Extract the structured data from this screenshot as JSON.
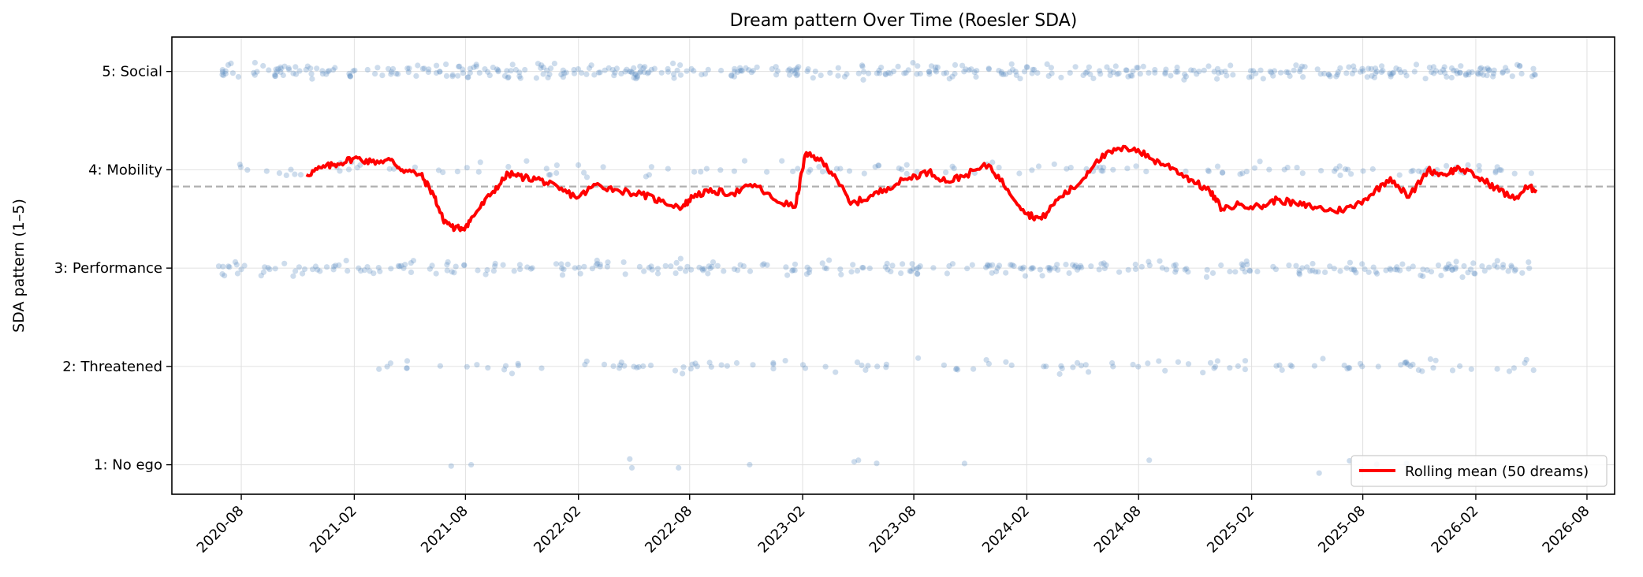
{
  "chart_data": {
    "type": "scatter",
    "title": "Dream pattern Over Time (Roesler SDA)",
    "xlabel": "",
    "ylabel": "SDA pattern (1–5)",
    "x_type": "date",
    "xlim": [
      "2020-04-10",
      "2026-09-15"
    ],
    "ylim": [
      0.7,
      5.35
    ],
    "x_ticks": [
      "2020-08",
      "2021-02",
      "2021-08",
      "2022-02",
      "2022-08",
      "2023-02",
      "2023-08",
      "2024-02",
      "2024-08",
      "2025-02",
      "2025-08",
      "2026-02",
      "2026-08"
    ],
    "y_ticks": [
      {
        "value": 1,
        "label": "1: No ego"
      },
      {
        "value": 2,
        "label": "2: Threatened"
      },
      {
        "value": 3,
        "label": "3: Performance"
      },
      {
        "value": 4,
        "label": "4: Mobility"
      },
      {
        "value": 5,
        "label": "5: Social"
      }
    ],
    "grid": true,
    "mean_line": {
      "y": 3.83,
      "style": "dashed",
      "color": "#b0b0b0"
    },
    "scatter_color": "#5b8abf",
    "scatter_alpha": 0.3,
    "scatter_date_range": [
      "2020-06-25",
      "2026-05-10"
    ],
    "scatter_counts": {
      "1": 16,
      "2": 130,
      "3": 330,
      "4": 140,
      "5": 460
    },
    "scatter_jitter": 0.06,
    "series": [
      {
        "name": "Rolling mean (50 dreams)",
        "color": "#ff0000",
        "points": [
          [
            "2020-11-15",
            3.95
          ],
          [
            "2020-12-10",
            4.02
          ],
          [
            "2021-01-05",
            4.06
          ],
          [
            "2021-02-01",
            4.12
          ],
          [
            "2021-03-01",
            4.08
          ],
          [
            "2021-04-01",
            4.1
          ],
          [
            "2021-04-20",
            4.0
          ],
          [
            "2021-05-20",
            3.95
          ],
          [
            "2021-06-10",
            3.75
          ],
          [
            "2021-06-25",
            3.5
          ],
          [
            "2021-07-15",
            3.4
          ],
          [
            "2021-08-01",
            3.42
          ],
          [
            "2021-08-20",
            3.58
          ],
          [
            "2021-09-15",
            3.78
          ],
          [
            "2021-10-10",
            3.96
          ],
          [
            "2021-11-05",
            3.92
          ],
          [
            "2021-12-01",
            3.9
          ],
          [
            "2022-01-01",
            3.8
          ],
          [
            "2022-02-01",
            3.72
          ],
          [
            "2022-03-01",
            3.85
          ],
          [
            "2022-04-01",
            3.8
          ],
          [
            "2022-05-15",
            3.75
          ],
          [
            "2022-06-15",
            3.68
          ],
          [
            "2022-07-20",
            3.62
          ],
          [
            "2022-08-10",
            3.75
          ],
          [
            "2022-09-10",
            3.78
          ],
          [
            "2022-10-10",
            3.76
          ],
          [
            "2022-11-15",
            3.85
          ],
          [
            "2022-12-15",
            3.7
          ],
          [
            "2023-01-20",
            3.62
          ],
          [
            "2023-02-05",
            4.15
          ],
          [
            "2023-02-25",
            4.12
          ],
          [
            "2023-03-25",
            3.95
          ],
          [
            "2023-04-20",
            3.65
          ],
          [
            "2023-05-20",
            3.72
          ],
          [
            "2023-06-20",
            3.82
          ],
          [
            "2023-07-25",
            3.92
          ],
          [
            "2023-08-25",
            3.98
          ],
          [
            "2023-09-25",
            3.88
          ],
          [
            "2023-10-25",
            3.95
          ],
          [
            "2023-12-01",
            4.05
          ],
          [
            "2024-01-01",
            3.8
          ],
          [
            "2024-02-01",
            3.55
          ],
          [
            "2024-02-25",
            3.5
          ],
          [
            "2024-03-25",
            3.72
          ],
          [
            "2024-04-25",
            3.85
          ],
          [
            "2024-05-25",
            4.1
          ],
          [
            "2024-06-25",
            4.2
          ],
          [
            "2024-07-25",
            4.22
          ],
          [
            "2024-08-25",
            4.1
          ],
          [
            "2024-09-25",
            4.02
          ],
          [
            "2024-10-25",
            3.9
          ],
          [
            "2024-11-25",
            3.78
          ],
          [
            "2024-12-15",
            3.6
          ],
          [
            "2025-01-15",
            3.65
          ],
          [
            "2025-02-15",
            3.62
          ],
          [
            "2025-03-15",
            3.7
          ],
          [
            "2025-04-15",
            3.65
          ],
          [
            "2025-05-15",
            3.62
          ],
          [
            "2025-06-15",
            3.58
          ],
          [
            "2025-07-15",
            3.62
          ],
          [
            "2025-08-15",
            3.75
          ],
          [
            "2025-09-15",
            3.92
          ],
          [
            "2025-10-15",
            3.72
          ],
          [
            "2025-11-15",
            4.0
          ],
          [
            "2025-12-10",
            3.95
          ],
          [
            "2026-01-05",
            4.02
          ],
          [
            "2026-02-05",
            3.92
          ],
          [
            "2026-03-05",
            3.82
          ],
          [
            "2026-04-05",
            3.7
          ],
          [
            "2026-04-25",
            3.82
          ],
          [
            "2026-05-10",
            3.8
          ]
        ]
      }
    ],
    "legend": {
      "position": "bottom-right"
    }
  }
}
